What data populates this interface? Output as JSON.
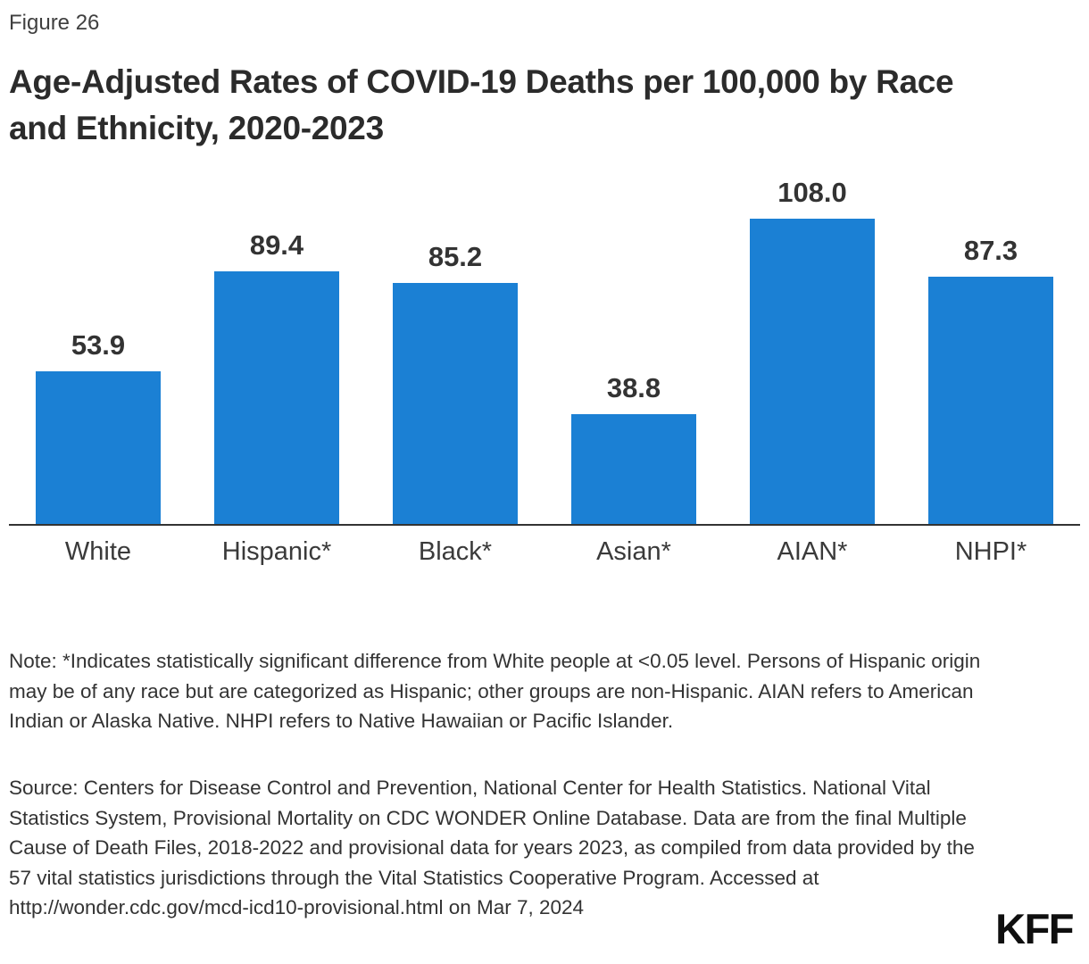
{
  "figure_label": "Figure 26",
  "header": {
    "title_line1": "Age-Adjusted Rates of COVID-19 Deaths per 100,000 by Race",
    "title_line2": "and Ethnicity, 2020-2023"
  },
  "chart_data": {
    "type": "bar",
    "title": "Age-Adjusted Rates of COVID-19 Deaths per 100,000 by Race and Ethnicity, 2020-2023",
    "categories": [
      "White",
      "Hispanic*",
      "Black*",
      "Asian*",
      "AIAN*",
      "NHPI*"
    ],
    "values": [
      53.9,
      89.4,
      85.2,
      38.8,
      108.0,
      87.3
    ],
    "value_labels": [
      "53.9",
      "89.4",
      "85.2",
      "38.8",
      "108.0",
      "87.3"
    ],
    "bar_color": "#1B80D4",
    "axis_line_color": "#333333",
    "xlabel": "",
    "ylabel": "",
    "ylim": [
      0,
      124
    ],
    "grid": false,
    "legend_position": "none",
    "data_labels": true
  },
  "note": "Note: *Indicates statistically significant difference from White people at <0.05 level. Persons of Hispanic origin may be of any race but are categorized as Hispanic; other groups are non-Hispanic. AIAN refers to American Indian or Alaska Native. NHPI refers to Native Hawaiian or Pacific Islander.",
  "source": "Source: Centers for Disease Control and Prevention, National Center for Health Statistics. National Vital Statistics System, Provisional Mortality on CDC WONDER Online Database. Data are from the final Multiple Cause of Death Files, 2018-2022 and provisional data for years 2023, as compiled from data provided by the 57 vital statistics jurisdictions through the Vital Statistics Cooperative Program. Accessed at http://wonder.cdc.gov/mcd-icd10-provisional.html on Mar 7, 2024",
  "branding": {
    "logo_text": "KFF"
  }
}
